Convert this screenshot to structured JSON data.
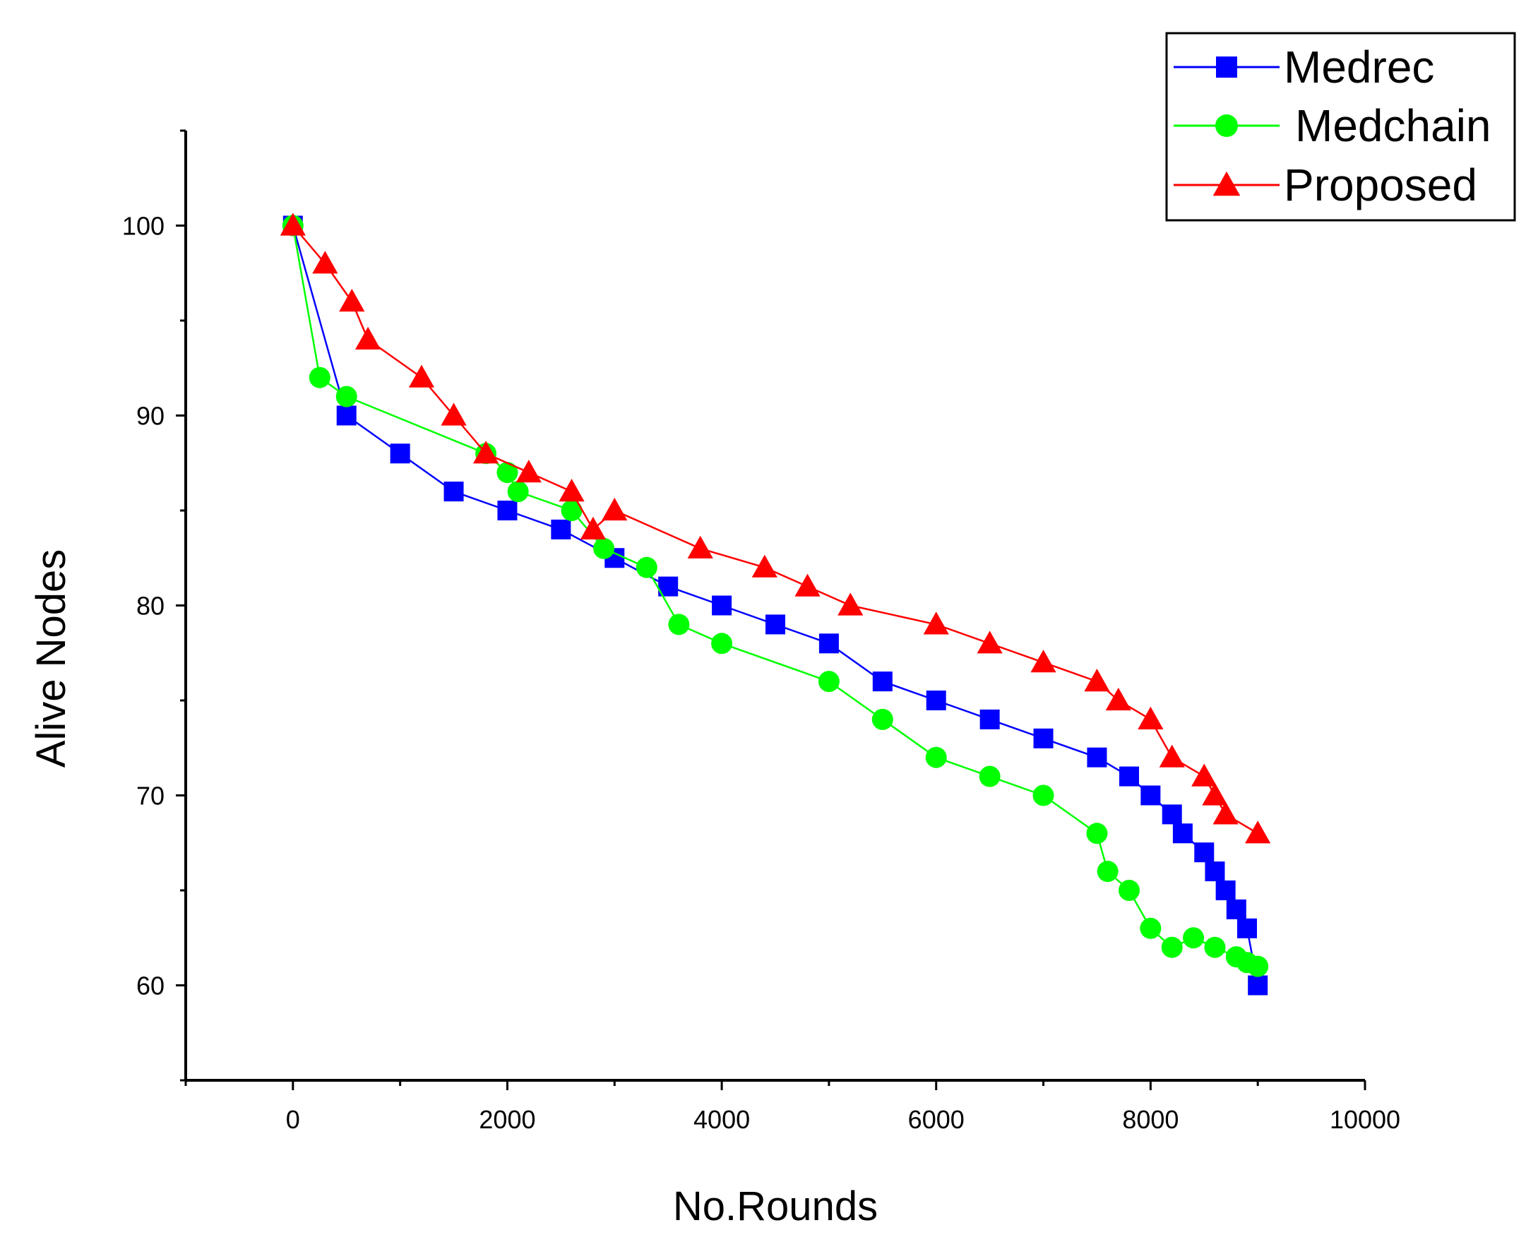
{
  "chart_data": {
    "type": "line",
    "title": "",
    "xlabel": "No.Rounds",
    "ylabel": "Alive Nodes",
    "xlim": [
      -1000,
      10000
    ],
    "ylim": [
      55,
      105
    ],
    "xticks": [
      0,
      2000,
      4000,
      6000,
      8000,
      10000
    ],
    "yticks": [
      60,
      70,
      80,
      90,
      100
    ],
    "xtick_labels": [
      "0",
      "2000",
      "4000",
      "6000",
      "8000",
      "10000"
    ],
    "ytick_labels": [
      "60",
      "70",
      "80",
      "90",
      "100"
    ],
    "grid": false,
    "legend_position": "top-right",
    "series": [
      {
        "name": "Medrec",
        "color": "#0000ff",
        "marker": "square",
        "x": [
          0,
          500,
          1000,
          1500,
          2000,
          2500,
          3000,
          3500,
          4000,
          4500,
          5000,
          5500,
          6000,
          6500,
          7000,
          7500,
          7800,
          8000,
          8200,
          8300,
          8500,
          8600,
          8700,
          8800,
          8900,
          9000
        ],
        "y": [
          100,
          90,
          88,
          86,
          85,
          84,
          82.5,
          81,
          80,
          79,
          78,
          76,
          75,
          74,
          73,
          72,
          71,
          70,
          69,
          68,
          67,
          66,
          65,
          64,
          63,
          60
        ]
      },
      {
        "name": "Medchain",
        "color": "#00ff00",
        "marker": "circle",
        "x": [
          0,
          250,
          500,
          1800,
          2000,
          2100,
          2600,
          2900,
          3300,
          3600,
          4000,
          5000,
          5500,
          6000,
          6500,
          7000,
          7500,
          7600,
          7800,
          8000,
          8200,
          8400,
          8600,
          8800,
          8900,
          9000
        ],
        "y": [
          100,
          92,
          91,
          88,
          87,
          86,
          85,
          83,
          82,
          79,
          78,
          76,
          74,
          72,
          71,
          70,
          68,
          66,
          65,
          63,
          62,
          62.5,
          62,
          61.5,
          61.2,
          61
        ]
      },
      {
        "name": "Proposed",
        "color": "#ff0000",
        "marker": "triangle",
        "x": [
          0,
          300,
          550,
          700,
          1200,
          1500,
          1800,
          2200,
          2600,
          2800,
          3000,
          3800,
          4400,
          4800,
          5200,
          6000,
          6500,
          7000,
          7500,
          7700,
          8000,
          8200,
          8500,
          8600,
          8700,
          9000
        ],
        "y": [
          100,
          98,
          96,
          94,
          92,
          90,
          88,
          87,
          86,
          84,
          85,
          83,
          82,
          81,
          80,
          79,
          78,
          77,
          76,
          75,
          74,
          72,
          71,
          70,
          69,
          68
        ]
      }
    ]
  }
}
